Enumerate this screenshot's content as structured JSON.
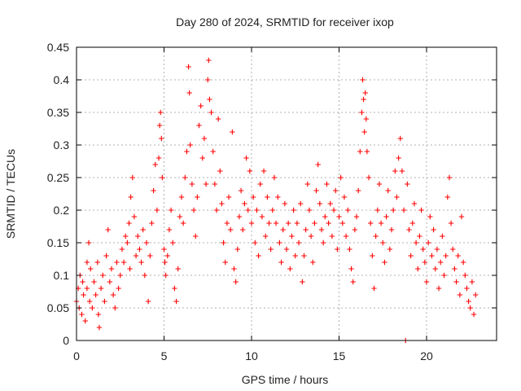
{
  "colors": {
    "series": "#ff0000",
    "frame": "#000000"
  },
  "chart_data": {
    "type": "scatter",
    "title": "Day 280 of 2024, SRMTID for receiver ixop",
    "xlabel": "GPS time / hours",
    "ylabel": "SRMTID / TECUs",
    "xlim": [
      0,
      24
    ],
    "ylim": [
      0,
      0.45
    ],
    "x_ticks": [
      0,
      5,
      10,
      15,
      20
    ],
    "y_ticks": [
      0,
      0.05,
      0.1,
      0.15,
      0.2,
      0.25,
      0.3,
      0.35,
      0.4,
      0.45
    ],
    "x_tick_labels": [
      "0",
      "5",
      "10",
      "15",
      "20"
    ],
    "y_tick_labels": [
      "0",
      "0.05",
      "0.1",
      "0.15",
      "0.2",
      "0.25",
      "0.3",
      "0.35",
      "0.4",
      "0.45"
    ],
    "grid": true,
    "marker": "plus",
    "series": [
      {
        "name": "SRMTID",
        "points": [
          [
            0.0,
            0.06
          ],
          [
            0.1,
            0.08
          ],
          [
            0.15,
            0.05
          ],
          [
            0.2,
            0.1
          ],
          [
            0.3,
            0.04
          ],
          [
            0.35,
            0.09
          ],
          [
            0.4,
            0.07
          ],
          [
            0.5,
            0.03
          ],
          [
            0.6,
            0.12
          ],
          [
            0.6,
            0.08
          ],
          [
            0.7,
            0.15
          ],
          [
            0.75,
            0.06
          ],
          [
            0.8,
            0.11
          ],
          [
            0.9,
            0.05
          ],
          [
            1.0,
            0.09
          ],
          [
            1.1,
            0.07
          ],
          [
            1.2,
            0.12
          ],
          [
            1.25,
            0.04
          ],
          [
            1.3,
            0.02
          ],
          [
            1.4,
            0.08
          ],
          [
            1.5,
            0.1
          ],
          [
            1.6,
            0.06
          ],
          [
            1.7,
            0.13
          ],
          [
            1.8,
            0.17
          ],
          [
            1.9,
            0.09
          ],
          [
            2.0,
            0.11
          ],
          [
            2.1,
            0.07
          ],
          [
            2.2,
            0.05
          ],
          [
            2.3,
            0.12
          ],
          [
            2.4,
            0.08
          ],
          [
            2.5,
            0.1
          ],
          [
            2.6,
            0.14
          ],
          [
            2.7,
            0.12
          ],
          [
            2.8,
            0.16
          ],
          [
            2.9,
            0.15
          ],
          [
            3.0,
            0.18
          ],
          [
            3.05,
            0.11
          ],
          [
            3.1,
            0.22
          ],
          [
            3.2,
            0.25
          ],
          [
            3.3,
            0.19
          ],
          [
            3.4,
            0.13
          ],
          [
            3.5,
            0.16
          ],
          [
            3.6,
            0.14
          ],
          [
            3.7,
            0.12
          ],
          [
            3.8,
            0.17
          ],
          [
            3.9,
            0.1
          ],
          [
            4.0,
            0.15
          ],
          [
            4.1,
            0.06
          ],
          [
            4.2,
            0.13
          ],
          [
            4.3,
            0.18
          ],
          [
            4.4,
            0.23
          ],
          [
            4.5,
            0.27
          ],
          [
            4.6,
            0.2
          ],
          [
            4.7,
            0.28
          ],
          [
            4.75,
            0.33
          ],
          [
            4.8,
            0.35
          ],
          [
            4.85,
            0.31
          ],
          [
            4.9,
            0.25
          ],
          [
            5.0,
            0.14
          ],
          [
            5.05,
            0.12
          ],
          [
            5.1,
            0.1
          ],
          [
            5.2,
            0.13
          ],
          [
            5.3,
            0.17
          ],
          [
            5.4,
            0.2
          ],
          [
            5.5,
            0.15
          ],
          [
            5.6,
            0.08
          ],
          [
            5.7,
            0.06
          ],
          [
            5.8,
            0.11
          ],
          [
            5.9,
            0.19
          ],
          [
            6.0,
            0.22
          ],
          [
            6.1,
            0.18
          ],
          [
            6.2,
            0.25
          ],
          [
            6.3,
            0.29
          ],
          [
            6.4,
            0.42
          ],
          [
            6.45,
            0.38
          ],
          [
            6.5,
            0.3
          ],
          [
            6.6,
            0.24
          ],
          [
            6.7,
            0.2
          ],
          [
            6.8,
            0.16
          ],
          [
            6.9,
            0.22
          ],
          [
            7.0,
            0.33
          ],
          [
            7.1,
            0.36
          ],
          [
            7.2,
            0.28
          ],
          [
            7.3,
            0.31
          ],
          [
            7.4,
            0.24
          ],
          [
            7.5,
            0.4
          ],
          [
            7.55,
            0.43
          ],
          [
            7.6,
            0.37
          ],
          [
            7.7,
            0.35
          ],
          [
            7.8,
            0.29
          ],
          [
            7.9,
            0.24
          ],
          [
            8.0,
            0.2
          ],
          [
            8.1,
            0.34
          ],
          [
            8.2,
            0.26
          ],
          [
            8.3,
            0.21
          ],
          [
            8.4,
            0.15
          ],
          [
            8.5,
            0.12
          ],
          [
            8.6,
            0.18
          ],
          [
            8.7,
            0.22
          ],
          [
            8.8,
            0.17
          ],
          [
            8.9,
            0.32
          ],
          [
            9.0,
            0.11
          ],
          [
            9.1,
            0.09
          ],
          [
            9.2,
            0.14
          ],
          [
            9.3,
            0.19
          ],
          [
            9.4,
            0.23
          ],
          [
            9.5,
            0.17
          ],
          [
            9.6,
            0.21
          ],
          [
            9.7,
            0.28
          ],
          [
            9.8,
            0.2
          ],
          [
            9.9,
            0.26
          ],
          [
            10.0,
            0.18
          ],
          [
            10.1,
            0.22
          ],
          [
            10.2,
            0.15
          ],
          [
            10.3,
            0.2
          ],
          [
            10.4,
            0.13
          ],
          [
            10.5,
            0.24
          ],
          [
            10.6,
            0.19
          ],
          [
            10.7,
            0.26
          ],
          [
            10.8,
            0.16
          ],
          [
            10.9,
            0.22
          ],
          [
            11.0,
            0.18
          ],
          [
            11.1,
            0.14
          ],
          [
            11.2,
            0.2
          ],
          [
            11.3,
            0.25
          ],
          [
            11.4,
            0.18
          ],
          [
            11.5,
            0.22
          ],
          [
            11.6,
            0.15
          ],
          [
            11.7,
            0.12
          ],
          [
            11.8,
            0.17
          ],
          [
            11.9,
            0.21
          ],
          [
            12.0,
            0.14
          ],
          [
            12.1,
            0.18
          ],
          [
            12.2,
            0.11
          ],
          [
            12.3,
            0.16
          ],
          [
            12.4,
            0.2
          ],
          [
            12.5,
            0.13
          ],
          [
            12.6,
            0.18
          ],
          [
            12.7,
            0.15
          ],
          [
            12.8,
            0.21
          ],
          [
            12.9,
            0.09
          ],
          [
            13.0,
            0.13
          ],
          [
            13.1,
            0.17
          ],
          [
            13.2,
            0.24
          ],
          [
            13.3,
            0.2
          ],
          [
            13.4,
            0.16
          ],
          [
            13.5,
            0.12
          ],
          [
            13.6,
            0.18
          ],
          [
            13.7,
            0.23
          ],
          [
            13.8,
            0.27
          ],
          [
            13.9,
            0.21
          ],
          [
            14.0,
            0.17
          ],
          [
            14.1,
            0.15
          ],
          [
            14.2,
            0.19
          ],
          [
            14.3,
            0.24
          ],
          [
            14.4,
            0.18
          ],
          [
            14.5,
            0.21
          ],
          [
            14.6,
            0.16
          ],
          [
            14.7,
            0.2
          ],
          [
            14.8,
            0.23
          ],
          [
            14.9,
            0.14
          ],
          [
            15.0,
            0.19
          ],
          [
            15.1,
            0.25
          ],
          [
            15.2,
            0.18
          ],
          [
            15.3,
            0.22
          ],
          [
            15.4,
            0.16
          ],
          [
            15.5,
            0.2
          ],
          [
            15.6,
            0.14
          ],
          [
            15.7,
            0.11
          ],
          [
            15.8,
            0.09
          ],
          [
            15.9,
            0.17
          ],
          [
            16.0,
            0.19
          ],
          [
            16.1,
            0.23
          ],
          [
            16.2,
            0.29
          ],
          [
            16.3,
            0.35
          ],
          [
            16.35,
            0.4
          ],
          [
            16.4,
            0.37
          ],
          [
            16.45,
            0.32
          ],
          [
            16.5,
            0.38
          ],
          [
            16.55,
            0.34
          ],
          [
            16.6,
            0.29
          ],
          [
            16.7,
            0.25
          ],
          [
            16.8,
            0.18
          ],
          [
            16.9,
            0.13
          ],
          [
            17.0,
            0.08
          ],
          [
            17.1,
            0.16
          ],
          [
            17.2,
            0.2
          ],
          [
            17.3,
            0.24
          ],
          [
            17.4,
            0.18
          ],
          [
            17.5,
            0.15
          ],
          [
            17.6,
            0.12
          ],
          [
            17.7,
            0.19
          ],
          [
            17.8,
            0.23
          ],
          [
            17.9,
            0.14
          ],
          [
            18.0,
            0.17
          ],
          [
            18.1,
            0.2
          ],
          [
            18.2,
            0.26
          ],
          [
            18.3,
            0.22
          ],
          [
            18.4,
            0.28
          ],
          [
            18.5,
            0.31
          ],
          [
            18.6,
            0.26
          ],
          [
            18.7,
            0.2
          ],
          [
            18.8,
            0.0
          ],
          [
            18.9,
            0.24
          ],
          [
            19.0,
            0.17
          ],
          [
            19.1,
            0.13
          ],
          [
            19.2,
            0.18
          ],
          [
            19.3,
            0.21
          ],
          [
            19.4,
            0.15
          ],
          [
            19.5,
            0.11
          ],
          [
            19.6,
            0.16
          ],
          [
            19.7,
            0.2
          ],
          [
            19.8,
            0.14
          ],
          [
            19.9,
            0.12
          ],
          [
            20.0,
            0.09
          ],
          [
            20.1,
            0.15
          ],
          [
            20.2,
            0.19
          ],
          [
            20.3,
            0.13
          ],
          [
            20.4,
            0.17
          ],
          [
            20.5,
            0.11
          ],
          [
            20.6,
            0.14
          ],
          [
            20.7,
            0.08
          ],
          [
            20.8,
            0.12
          ],
          [
            20.9,
            0.16
          ],
          [
            21.0,
            0.1
          ],
          [
            21.1,
            0.13
          ],
          [
            21.2,
            0.22
          ],
          [
            21.3,
            0.25
          ],
          [
            21.4,
            0.18
          ],
          [
            21.5,
            0.14
          ],
          [
            21.6,
            0.11
          ],
          [
            21.7,
            0.09
          ],
          [
            21.8,
            0.13
          ],
          [
            21.9,
            0.07
          ],
          [
            22.0,
            0.19
          ],
          [
            22.1,
            0.12
          ],
          [
            22.2,
            0.1
          ],
          [
            22.3,
            0.08
          ],
          [
            22.4,
            0.06
          ],
          [
            22.5,
            0.05
          ],
          [
            22.6,
            0.09
          ],
          [
            22.7,
            0.04
          ],
          [
            22.8,
            0.07
          ]
        ]
      }
    ]
  }
}
